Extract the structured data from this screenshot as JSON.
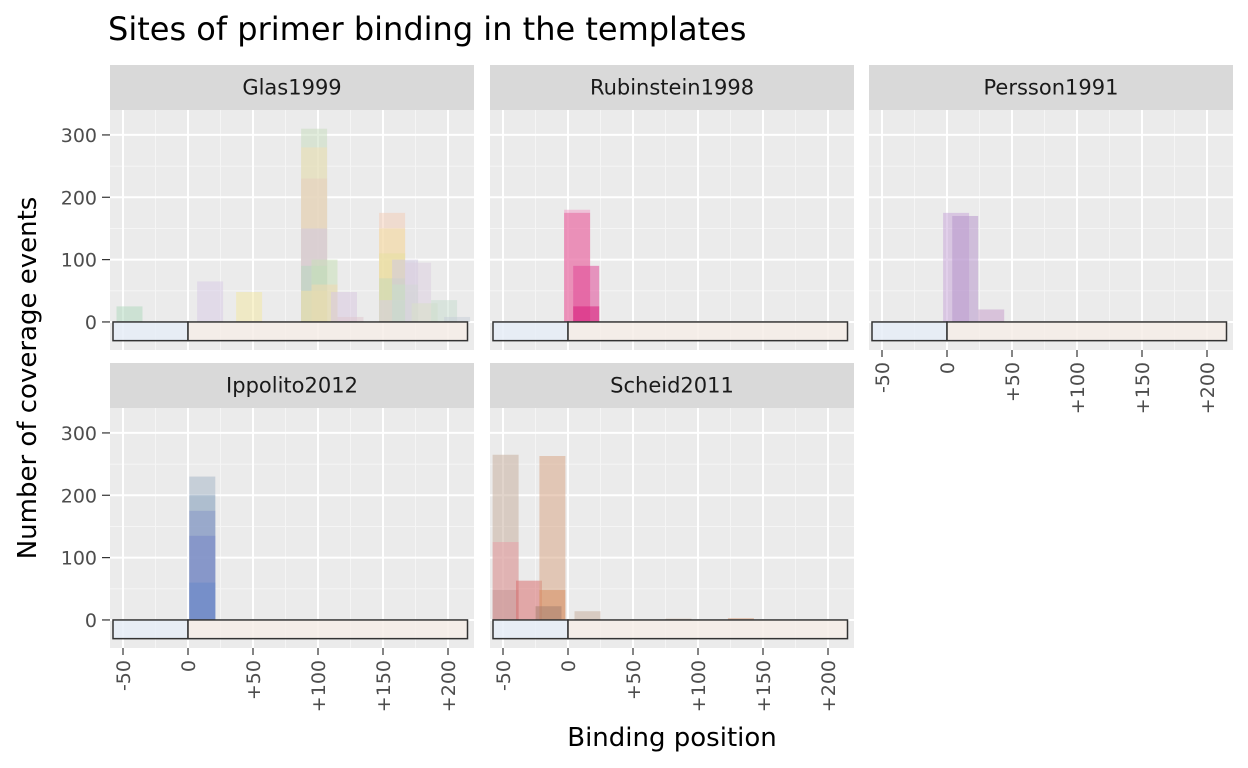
{
  "chart_data": {
    "type": "bar",
    "title": "Sites of primer binding in the templates",
    "xlabel": "Binding position",
    "ylabel": "Number of coverage events",
    "xlim": [
      -60,
      220
    ],
    "ylim": [
      -45,
      340
    ],
    "x_ticks": [
      {
        "value": -50,
        "label": "-50"
      },
      {
        "value": 0,
        "label": "0"
      },
      {
        "value": 50,
        "label": "+50"
      },
      {
        "value": 100,
        "label": "+100"
      },
      {
        "value": 150,
        "label": "+150"
      },
      {
        "value": 200,
        "label": "+200"
      }
    ],
    "y_ticks": [
      {
        "value": 0,
        "label": "0"
      },
      {
        "value": 100,
        "label": "100"
      },
      {
        "value": 200,
        "label": "200"
      },
      {
        "value": 300,
        "label": "300"
      }
    ],
    "grid": true,
    "bar_width": 20,
    "template_region": {
      "upstream": [
        -60,
        0
      ],
      "downstream": [
        0,
        215
      ],
      "upstream_color": "#e6edf7",
      "downstream_color": "#f6ede8",
      "y": [
        -30,
        0
      ]
    },
    "panels": [
      {
        "name": "Glas1999",
        "bars": [
          {
            "x": -45,
            "value": 25,
            "color": "#b3d9bf"
          },
          {
            "x": 17,
            "value": 65,
            "color": "#d9cce6"
          },
          {
            "x": 47,
            "value": 48,
            "color": "#f2e8a6"
          },
          {
            "x": 97,
            "value": 310,
            "color": "#c8dcc0"
          },
          {
            "x": 97,
            "value": 280,
            "color": "#f2e0b8"
          },
          {
            "x": 97,
            "value": 230,
            "color": "#e6d0c0"
          },
          {
            "x": 97,
            "value": 150,
            "color": "#d0c8e0"
          },
          {
            "x": 97,
            "value": 90,
            "color": "#b8d8c0"
          },
          {
            "x": 97,
            "value": 50,
            "color": "#f0e0a8"
          },
          {
            "x": 105,
            "value": 100,
            "color": "#c8e0b8"
          },
          {
            "x": 105,
            "value": 60,
            "color": "#f0d8b0"
          },
          {
            "x": 120,
            "value": 48,
            "color": "#d8c8e0"
          },
          {
            "x": 125,
            "value": 8,
            "color": "#e0c8d0"
          },
          {
            "x": 157,
            "value": 175,
            "color": "#f2cdb8"
          },
          {
            "x": 157,
            "value": 150,
            "color": "#f2e0a8"
          },
          {
            "x": 157,
            "value": 110,
            "color": "#e6e0a0"
          },
          {
            "x": 157,
            "value": 70,
            "color": "#c8d8b8"
          },
          {
            "x": 157,
            "value": 35,
            "color": "#d8d0e0"
          },
          {
            "x": 167,
            "value": 100,
            "color": "#d0c8e0"
          },
          {
            "x": 167,
            "value": 60,
            "color": "#c8e0c8"
          },
          {
            "x": 177,
            "value": 95,
            "color": "#dcd0e0"
          },
          {
            "x": 182,
            "value": 30,
            "color": "#d8e0c8"
          },
          {
            "x": 197,
            "value": 35,
            "color": "#c8dcd0"
          },
          {
            "x": 207,
            "value": 8,
            "color": "#c8d0d8"
          }
        ]
      },
      {
        "name": "Rubinstein1998",
        "bars": [
          {
            "x": 7,
            "value": 180,
            "color": "#f0a0c8"
          },
          {
            "x": 7,
            "value": 175,
            "color": "#e8689e"
          },
          {
            "x": 14,
            "value": 90,
            "color": "#e04a98"
          },
          {
            "x": 14,
            "value": 25,
            "color": "#d8207e"
          }
        ]
      },
      {
        "name": "Persson1991",
        "bars": [
          {
            "x": 7,
            "value": 175,
            "color": "#c8a8d8"
          },
          {
            "x": 14,
            "value": 170,
            "color": "#b898cc"
          },
          {
            "x": 34,
            "value": 20,
            "color": "#c8a0cc"
          }
        ]
      },
      {
        "name": "Ippolito2012",
        "bars": [
          {
            "x": 11,
            "value": 230,
            "color": "#a8b8c8"
          },
          {
            "x": 11,
            "value": 200,
            "color": "#9ab0c8"
          },
          {
            "x": 11,
            "value": 175,
            "color": "#8898c8"
          },
          {
            "x": 11,
            "value": 135,
            "color": "#7888c8"
          },
          {
            "x": 11,
            "value": 60,
            "color": "#6888c8"
          }
        ]
      },
      {
        "name": "Scheid2011",
        "bars": [
          {
            "x": -48,
            "value": 265,
            "color": "#c8b0a0"
          },
          {
            "x": -48,
            "value": 125,
            "color": "#e8a0a8"
          },
          {
            "x": -48,
            "value": 48,
            "color": "#c89898"
          },
          {
            "x": -30,
            "value": 63,
            "color": "#d87070"
          },
          {
            "x": -12,
            "value": 263,
            "color": "#d8a888"
          },
          {
            "x": -12,
            "value": 48,
            "color": "#d89060"
          },
          {
            "x": -15,
            "value": 22,
            "color": "#a88070"
          },
          {
            "x": 15,
            "value": 14,
            "color": "#c8b0a0"
          },
          {
            "x": 85,
            "value": 2,
            "color": "#c8a890"
          },
          {
            "x": 133,
            "value": 3,
            "color": "#d8a080"
          }
        ]
      }
    ]
  }
}
